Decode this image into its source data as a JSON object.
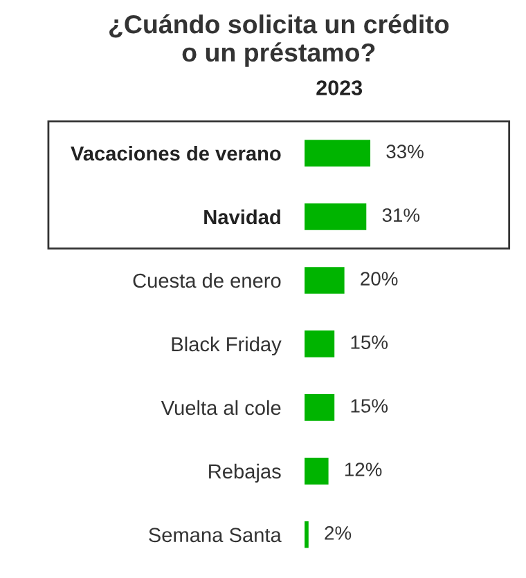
{
  "chart_data": {
    "type": "bar",
    "orientation": "horizontal",
    "title": "¿Cuándo solicita un crédito\no un préstamo?",
    "subtitle": "2023",
    "categories": [
      "Vacaciones de verano",
      "Navidad",
      "Cuesta de enero",
      "Black Friday",
      "Vuelta al cole",
      "Rebajas",
      "Semana Santa"
    ],
    "values": [
      33,
      31,
      20,
      15,
      15,
      12,
      2
    ],
    "color": "#00b400",
    "value_labels": [
      "33%",
      "31%",
      "20%",
      "15%",
      "15%",
      "12%",
      "2%"
    ],
    "grid": false,
    "legend": false
  }
}
